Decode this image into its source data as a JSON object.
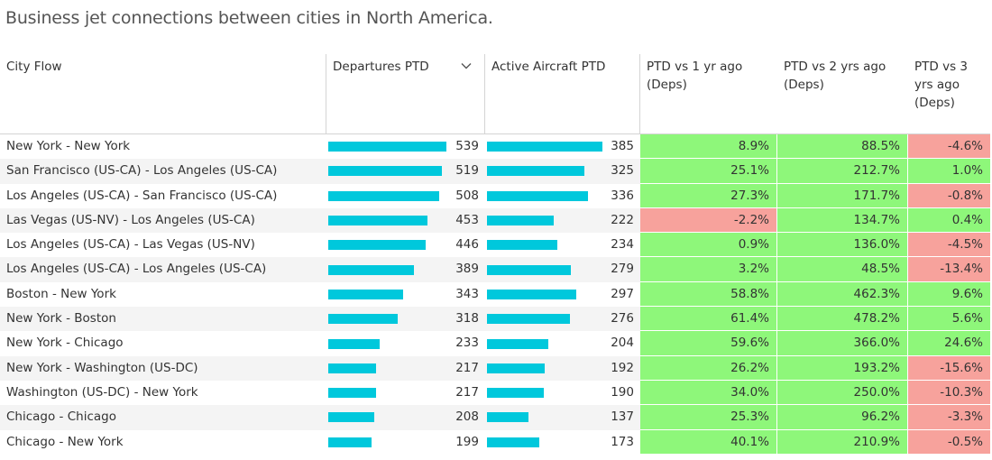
{
  "title": "Business jet connections between cities in North America.",
  "colors": {
    "bar": "#00c8dc",
    "positive": "#8ef77a",
    "negative": "#f7a29c"
  },
  "headers": {
    "city": "City Flow",
    "departures": "Departures PTD",
    "active": "Active Aircraft PTD",
    "p1": "PTD vs 1 yr ago (Deps)",
    "p2": "PTD vs 2 yrs ago (Deps)",
    "p3": "PTD vs 3 yrs ago (Deps)"
  },
  "sort_icon": "chevron-down-icon",
  "chart_data": {
    "type": "table",
    "title": "Business jet connections between cities in North America.",
    "columns": [
      "City Flow",
      "Departures PTD",
      "Active Aircraft PTD",
      "PTD vs 1 yr ago (Deps)",
      "PTD vs 2 yrs ago (Deps)",
      "PTD vs 3 yrs ago (Deps)"
    ],
    "sorted_by": "Departures PTD",
    "rows": [
      {
        "city": "New York - New York",
        "departures": 539,
        "active": 385,
        "p1": "8.9%",
        "p2": "88.5%",
        "p3": "-4.6%"
      },
      {
        "city": "San Francisco (US-CA) - Los Angeles (US-CA)",
        "departures": 519,
        "active": 325,
        "p1": "25.1%",
        "p2": "212.7%",
        "p3": "1.0%"
      },
      {
        "city": "Los Angeles (US-CA) - San Francisco (US-CA)",
        "departures": 508,
        "active": 336,
        "p1": "27.3%",
        "p2": "171.7%",
        "p3": "-0.8%"
      },
      {
        "city": "Las Vegas (US-NV) - Los Angeles (US-CA)",
        "departures": 453,
        "active": 222,
        "p1": "-2.2%",
        "p2": "134.7%",
        "p3": "0.4%"
      },
      {
        "city": "Los Angeles (US-CA) - Las Vegas (US-NV)",
        "departures": 446,
        "active": 234,
        "p1": "0.9%",
        "p2": "136.0%",
        "p3": "-4.5%"
      },
      {
        "city": "Los Angeles (US-CA) - Los Angeles (US-CA)",
        "departures": 389,
        "active": 279,
        "p1": "3.2%",
        "p2": "48.5%",
        "p3": "-13.4%"
      },
      {
        "city": "Boston - New York",
        "departures": 343,
        "active": 297,
        "p1": "58.8%",
        "p2": "462.3%",
        "p3": "9.6%"
      },
      {
        "city": "New York - Boston",
        "departures": 318,
        "active": 276,
        "p1": "61.4%",
        "p2": "478.2%",
        "p3": "5.6%"
      },
      {
        "city": "New York - Chicago",
        "departures": 233,
        "active": 204,
        "p1": "59.6%",
        "p2": "366.0%",
        "p3": "24.6%"
      },
      {
        "city": "New York - Washington (US-DC)",
        "departures": 217,
        "active": 192,
        "p1": "26.2%",
        "p2": "193.2%",
        "p3": "-15.6%"
      },
      {
        "city": "Washington (US-DC) - New York",
        "departures": 217,
        "active": 190,
        "p1": "34.0%",
        "p2": "250.0%",
        "p3": "-10.3%"
      },
      {
        "city": "Chicago - Chicago",
        "departures": 208,
        "active": 137,
        "p1": "25.3%",
        "p2": "96.2%",
        "p3": "-3.3%"
      },
      {
        "city": "Chicago - New York",
        "departures": 199,
        "active": 173,
        "p1": "40.1%",
        "p2": "210.9%",
        "p3": "-0.5%"
      }
    ]
  }
}
